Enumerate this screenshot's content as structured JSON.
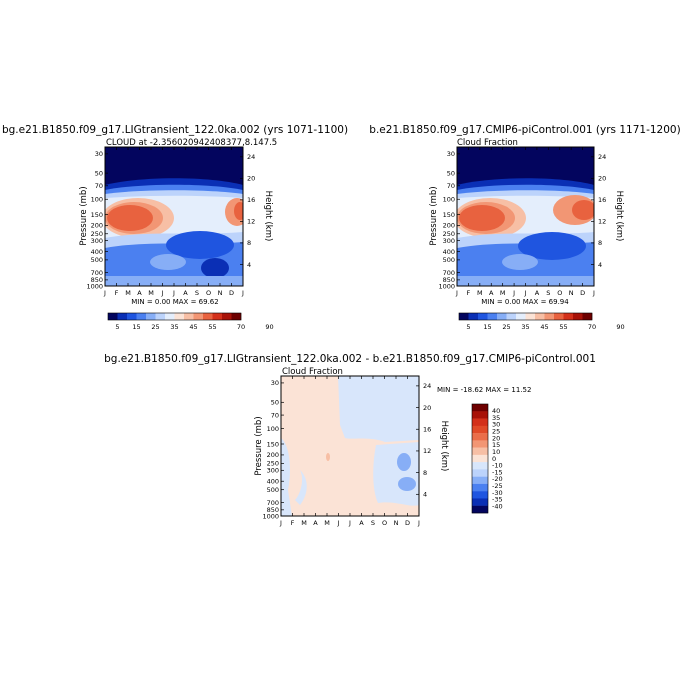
{
  "chart_data": [
    {
      "type": "heatmap",
      "title": "bg.e21.B1850.f09_g17.LIGtransient_122.0ka.002 (yrs 1071-1100)",
      "subtitle": "CLOUD at -2.356020942408377,8.147.5",
      "ylabel": "Pressure (mb)",
      "ylabel_right": "Height (km)",
      "x": [
        "J",
        "F",
        "M",
        "A",
        "M",
        "J",
        "J",
        "A",
        "S",
        "O",
        "N",
        "D",
        "J"
      ],
      "y_pressure_ticks": [
        "30",
        "50",
        "70",
        "100",
        "150",
        "200",
        "250",
        "300",
        "400",
        "500",
        "700",
        "850",
        "1000"
      ],
      "y_height_ticks": [
        "24",
        "20",
        "16",
        "12",
        "8",
        "4"
      ],
      "minmax": "MIN =    0.00  MAX =   69.62",
      "colorbar_labels": [
        "5",
        "15",
        "25",
        "35",
        "45",
        "55",
        "70",
        "90"
      ]
    },
    {
      "type": "heatmap",
      "title": "b.e21.B1850.f09_g17.CMIP6-piControl.001 (yrs 1171-1200)",
      "subtitle": "Cloud Fraction",
      "ylabel": "Pressure (mb)",
      "ylabel_right": "Height (km)",
      "x": [
        "J",
        "F",
        "M",
        "A",
        "M",
        "J",
        "J",
        "A",
        "S",
        "O",
        "N",
        "D",
        "J"
      ],
      "y_pressure_ticks": [
        "30",
        "50",
        "70",
        "100",
        "150",
        "200",
        "250",
        "300",
        "400",
        "500",
        "700",
        "850",
        "1000"
      ],
      "y_height_ticks": [
        "24",
        "20",
        "16",
        "12",
        "8",
        "4"
      ],
      "minmax": "MIN =    0.00  MAX =   69.94",
      "colorbar_labels": [
        "5",
        "15",
        "25",
        "35",
        "45",
        "55",
        "70",
        "90"
      ]
    },
    {
      "type": "heatmap",
      "title": "bg.e21.B1850.f09_g17.LIGtransient_122.0ka.002 - b.e21.B1850.f09_g17.CMIP6-piControl.001",
      "subtitle": "Cloud Fraction",
      "ylabel": "Pressure (mb)",
      "ylabel_right": "Height (km)",
      "x": [
        "J",
        "F",
        "M",
        "A",
        "M",
        "J",
        "J",
        "A",
        "S",
        "O",
        "N",
        "D",
        "J"
      ],
      "y_pressure_ticks": [
        "30",
        "50",
        "70",
        "100",
        "150",
        "200",
        "250",
        "300",
        "400",
        "500",
        "700",
        "850",
        "1000"
      ],
      "y_height_ticks": [
        "24",
        "20",
        "16",
        "12",
        "8",
        "4"
      ],
      "minmax": "MIN = -18.62  MAX =   11.52",
      "colorbar_labels": [
        "40",
        "35",
        "30",
        "25",
        "20",
        "15",
        "10",
        "0",
        "-10",
        "-15",
        "-20",
        "-25",
        "-30",
        "-35",
        "-40"
      ]
    }
  ],
  "colors": {
    "cloud_scale": [
      "#03055e",
      "#0a2fb5",
      "#1f55e0",
      "#4b80f0",
      "#87aef6",
      "#bcd3fb",
      "#e4eefc",
      "#fbe3d6",
      "#f7bfa5",
      "#f29674",
      "#e8623f",
      "#d3301a",
      "#a81208",
      "#6e0000"
    ],
    "diff_scale": [
      "#6e0000",
      "#a81208",
      "#d3301a",
      "#e04a28",
      "#ea6e4a",
      "#f29674",
      "#f7bfa5",
      "#fbe3d6",
      "#d8e6fb",
      "#bcd3fb",
      "#87aef6",
      "#4b80f0",
      "#1f55e0",
      "#0a2fb5",
      "#03055e"
    ],
    "diff_background": "#fbe3d6",
    "diff_negative": "#d8e6fb"
  }
}
